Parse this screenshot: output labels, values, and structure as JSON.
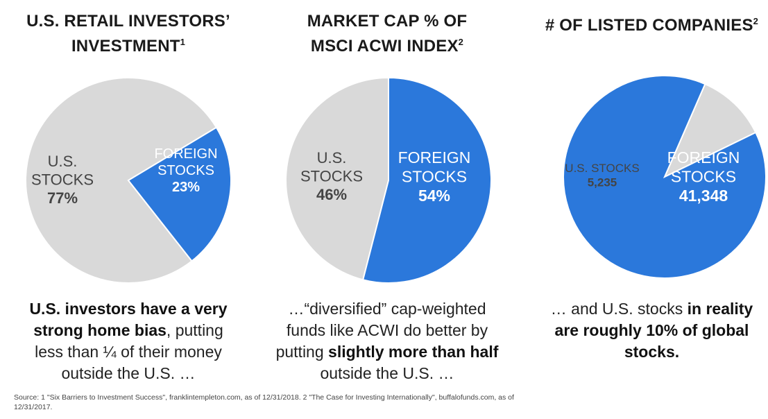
{
  "colors": {
    "us": "#d9d9d9",
    "foreign": "#2b78db",
    "us_text": "#444444",
    "foreign_text": "#ffffff"
  },
  "panels": [
    {
      "title": "U.S. RETAIL INVESTORS’",
      "title_line2": "INVESTMENT",
      "title_sup": "1",
      "caption": {
        "bold1": "U.S. investors have a very strong home bias",
        "normal1": ", putting less than ¼ of their money outside the U.S. …",
        "bold2": "",
        "normal2": ""
      }
    },
    {
      "title": "MARKET CAP % OF",
      "title_line2": "MSCI ACWI INDEX",
      "title_sup": "2",
      "caption": {
        "normal1": "…“diversified” cap-weighted funds like ACWI do better by putting ",
        "bold1": "slightly more than half",
        "normal2": " outside the U.S. …"
      }
    },
    {
      "title": "# OF LISTED COMPANIES",
      "title_sup": "2",
      "caption": {
        "normal1": "… and U.S. stocks ",
        "bold1": "in reality are roughly 10% of global stocks."
      }
    }
  ],
  "chart_data": [
    {
      "type": "pie",
      "title": "U.S. RETAIL INVESTORS’ INVESTMENT",
      "slices": [
        {
          "label_lines": [
            "U.S.",
            "STOCKS"
          ],
          "value_label": "77%",
          "value": 77
        },
        {
          "label_lines": [
            "FOREIGN",
            "STOCKS"
          ],
          "value_label": "23%",
          "value": 23
        }
      ]
    },
    {
      "type": "pie",
      "title": "MARKET CAP % OF MSCI ACWI INDEX",
      "slices": [
        {
          "label_lines": [
            "U.S.",
            "STOCKS"
          ],
          "value_label": "46%",
          "value": 46
        },
        {
          "label_lines": [
            "FOREIGN",
            "STOCKS"
          ],
          "value_label": "54%",
          "value": 54
        }
      ]
    },
    {
      "type": "pie",
      "title": "# OF LISTED COMPANIES",
      "slices": [
        {
          "label_lines": [
            "U.S. STOCKS"
          ],
          "value_label": "5,235",
          "value": 5235
        },
        {
          "label_lines": [
            "FOREIGN",
            "STOCKS"
          ],
          "value_label": "41,348",
          "value": 41348
        }
      ]
    }
  ],
  "source": "Source: 1 \"Six Barriers to Investment Success\", franklintempleton.com, as of 12/31/2018. 2 \"The Case for Investing Internationally\", buffalofunds.com, as of 12/31/2017."
}
